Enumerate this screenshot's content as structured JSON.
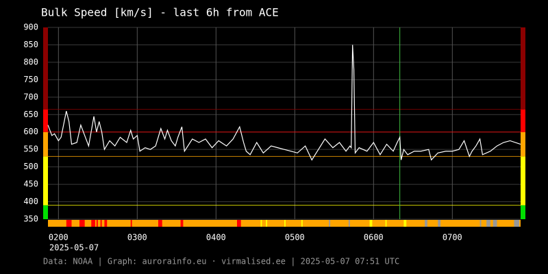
{
  "chart_data": {
    "type": "line",
    "title": "Bulk Speed [km/s] - last 6h from ACE",
    "date_label": "2025-05-07",
    "footer": "Data: NOAA | Graph: aurorainfo.eu · virmalised.ee | 2025-05-07 07:51 UTC",
    "xlim": [
      112,
      472
    ],
    "xticks": [
      {
        "value": 120,
        "label": "0200"
      },
      {
        "value": 180,
        "label": "0300"
      },
      {
        "value": 240,
        "label": "0400"
      },
      {
        "value": 300,
        "label": "0500"
      },
      {
        "value": 360,
        "label": "0600"
      },
      {
        "value": 420,
        "label": "0700"
      }
    ],
    "ylim": [
      350,
      900
    ],
    "yticks": [
      350,
      400,
      450,
      500,
      550,
      600,
      650,
      700,
      750,
      800,
      850,
      900
    ],
    "grid": true,
    "color": "#ffffff",
    "x": [
      112,
      115,
      117,
      120,
      122,
      126,
      128,
      130,
      134,
      137,
      141,
      143,
      147,
      149,
      151,
      153,
      155,
      159,
      163,
      167,
      172,
      175,
      177,
      180,
      182,
      186,
      190,
      194,
      198,
      201,
      203,
      206,
      209,
      211,
      214,
      216,
      222,
      227,
      232,
      237,
      242,
      248,
      253,
      258,
      261,
      263,
      266,
      271,
      276,
      282,
      287,
      292,
      297,
      302,
      308,
      313,
      318,
      323,
      329,
      334,
      339,
      342,
      343,
      344,
      345,
      346,
      349,
      355,
      360,
      365,
      370,
      375,
      378,
      380,
      381,
      383,
      386,
      391,
      396,
      402,
      404,
      409,
      415,
      420,
      425,
      429,
      433,
      435,
      438,
      441,
      443,
      449,
      454,
      459,
      464,
      472
    ],
    "values": [
      620,
      590,
      595,
      575,
      585,
      660,
      630,
      565,
      570,
      620,
      580,
      560,
      645,
      600,
      630,
      600,
      550,
      575,
      560,
      585,
      570,
      605,
      580,
      590,
      545,
      555,
      550,
      560,
      610,
      580,
      605,
      575,
      560,
      585,
      615,
      545,
      580,
      570,
      580,
      555,
      575,
      560,
      580,
      615,
      570,
      545,
      535,
      570,
      540,
      560,
      555,
      550,
      545,
      540,
      560,
      520,
      550,
      580,
      555,
      570,
      545,
      560,
      555,
      850,
      780,
      540,
      555,
      545,
      570,
      535,
      565,
      545,
      570,
      585,
      520,
      550,
      535,
      545,
      545,
      550,
      520,
      540,
      545,
      545,
      550,
      575,
      530,
      545,
      560,
      580,
      535,
      545,
      560,
      570,
      575,
      565
    ],
    "bands": [
      {
        "from": 350,
        "to": 390,
        "color": "#00e000"
      },
      {
        "from": 390,
        "to": 530,
        "color": "#ffff00"
      },
      {
        "from": 530,
        "to": 600,
        "color": "#ffa500"
      },
      {
        "from": 600,
        "to": 665,
        "color": "#ff0000"
      },
      {
        "from": 665,
        "to": 900,
        "color": "#8b0000"
      }
    ],
    "marker": {
      "x": 380,
      "color": "#40c040"
    },
    "strip_color": "#ffa500",
    "strip": [
      {
        "start": 126,
        "end": 130,
        "color": "#ff0000"
      },
      {
        "start": 136,
        "end": 140,
        "color": "#ff0000"
      },
      {
        "start": 145,
        "end": 148,
        "color": "#ff0000"
      },
      {
        "start": 149,
        "end": 150,
        "color": "#ff0000"
      },
      {
        "start": 152,
        "end": 153,
        "color": "#ff0000"
      },
      {
        "start": 155,
        "end": 157,
        "color": "#ff0000"
      },
      {
        "start": 175,
        "end": 176,
        "color": "#ff0000"
      },
      {
        "start": 196,
        "end": 199,
        "color": "#ff0000"
      },
      {
        "start": 213,
        "end": 215,
        "color": "#ff0000"
      },
      {
        "start": 256,
        "end": 259,
        "color": "#ff0000"
      },
      {
        "start": 274,
        "end": 275,
        "color": "#ffff00"
      },
      {
        "start": 278,
        "end": 279,
        "color": "#ffff00"
      },
      {
        "start": 292,
        "end": 293,
        "color": "#ffff00"
      },
      {
        "start": 305,
        "end": 306,
        "color": "#ffff00"
      },
      {
        "start": 326,
        "end": 327,
        "color": "#999999"
      },
      {
        "start": 341,
        "end": 342,
        "color": "#999999"
      },
      {
        "start": 357,
        "end": 359,
        "color": "#ffff00"
      },
      {
        "start": 369,
        "end": 370,
        "color": "#ffff00"
      },
      {
        "start": 383,
        "end": 385,
        "color": "#ffff00"
      },
      {
        "start": 399,
        "end": 401,
        "color": "#999999"
      },
      {
        "start": 409,
        "end": 411,
        "color": "#999999"
      },
      {
        "start": 441,
        "end": 442,
        "color": "#999999"
      },
      {
        "start": 446,
        "end": 449,
        "color": "#999999"
      },
      {
        "start": 451,
        "end": 454,
        "color": "#999999"
      },
      {
        "start": 467,
        "end": 471,
        "color": "#999999"
      }
    ]
  }
}
